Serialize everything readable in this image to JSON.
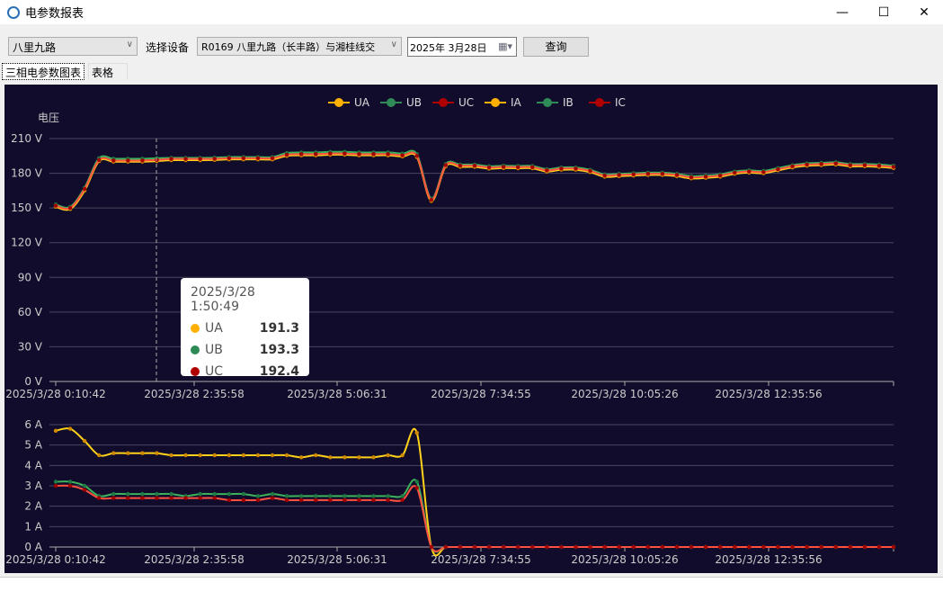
{
  "window": {
    "title": "电参数报表",
    "minimize": "—",
    "maximize": "☐",
    "close": "✕"
  },
  "toolbar": {
    "road_select": "八里九路",
    "device_label": "选择设备",
    "device_select": "R0169 八里九路（长丰路）与湘桂线交",
    "date": "2025年 3月28日",
    "query_button": "查询"
  },
  "tabs": [
    {
      "label": "三相电参数图表",
      "active": true
    },
    {
      "label": "表格",
      "active": false
    }
  ],
  "colors": {
    "background": "#110c2b",
    "A": "#ffb000",
    "B": "#2e8b57",
    "C": "#b00000"
  },
  "chart_data": [
    {
      "type": "line",
      "ylabel": "电压",
      "unit": "V",
      "ylim": [
        0,
        210
      ],
      "yticks": [
        "0 V",
        "30 V",
        "60 V",
        "90 V",
        "120 V",
        "150 V",
        "180 V",
        "210 V"
      ],
      "xticks": [
        "2025/3/28 0:10:42",
        "2025/3/28 2:35:58",
        "2025/3/28 5:06:31",
        "2025/3/28 7:34:55",
        "2025/3/28 10:05:26",
        "2025/3/28 12:35:56"
      ],
      "legend": [
        "UA",
        "UB",
        "UC",
        "IA",
        "IB",
        "IC"
      ],
      "legend_position": "top",
      "grid": true,
      "series": [
        {
          "name": "UA",
          "values": [
            151,
            149,
            165,
            190.5,
            190,
            190,
            190,
            190.5,
            191.3,
            191.3,
            191.3,
            191.5,
            192,
            192,
            192,
            192,
            195,
            195.5,
            195.5,
            196,
            196,
            195.5,
            195.5,
            195.5,
            194.5,
            194,
            156,
            186,
            185.5,
            185.5,
            184,
            184.5,
            184.3,
            184.3,
            181.5,
            183,
            183,
            181,
            177,
            177.5,
            178,
            178.5,
            178.5,
            177.5,
            175.5,
            176,
            177,
            179.5,
            180.5,
            180,
            182.5,
            185,
            186.5,
            187,
            187.5,
            186,
            186,
            185.5,
            184.5
          ]
        },
        {
          "name": "UB",
          "values": [
            153,
            151,
            167.5,
            193,
            192.5,
            192.5,
            192.5,
            193,
            193.3,
            193.3,
            193.3,
            193.5,
            194,
            194,
            194,
            194,
            197.5,
            198,
            198,
            198.5,
            198.5,
            198,
            198,
            198,
            197,
            196.5,
            158,
            188,
            187.5,
            187.5,
            186,
            186.5,
            186.3,
            186.3,
            183.5,
            185,
            185,
            183,
            179,
            179.5,
            180,
            180.5,
            180.5,
            179.5,
            177.5,
            178,
            179,
            181.5,
            182.5,
            182,
            184.5,
            187,
            188.5,
            189,
            189.5,
            188,
            188,
            187.5,
            186.5
          ]
        },
        {
          "name": "UC",
          "values": [
            152,
            150,
            166.5,
            191.5,
            191,
            191,
            191,
            191.5,
            192.4,
            192.4,
            192.4,
            192.5,
            193,
            193,
            193,
            193,
            196,
            196.5,
            196.5,
            197,
            197,
            196.5,
            196.5,
            196.5,
            195.5,
            195,
            157,
            187,
            186.5,
            186.5,
            185,
            185.5,
            185.3,
            185.3,
            182.5,
            184,
            184,
            182,
            178,
            178.5,
            179,
            179.5,
            179.5,
            178.5,
            176.5,
            177,
            178,
            180.5,
            181.5,
            181,
            183.5,
            186,
            187.5,
            188,
            188.5,
            187,
            187,
            186.5,
            185.5
          ]
        }
      ],
      "tooltip": {
        "time": "2025/3/28 1:50:49",
        "rows": [
          {
            "name": "UA",
            "value": "191.3"
          },
          {
            "name": "UB",
            "value": "193.3"
          },
          {
            "name": "UC",
            "value": "192.4"
          }
        ]
      }
    },
    {
      "type": "line",
      "unit": "A",
      "ylim": [
        0,
        6
      ],
      "yticks": [
        "0 A",
        "1 A",
        "2 A",
        "3 A",
        "4 A",
        "5 A",
        "6 A"
      ],
      "xticks": [
        "2025/3/28 0:10:42",
        "2025/3/28 2:35:58",
        "2025/3/28 5:06:31",
        "2025/3/28 7:34:55",
        "2025/3/28 10:05:26",
        "2025/3/28 12:35:56"
      ],
      "grid": true,
      "series": [
        {
          "name": "IA",
          "values": [
            5.7,
            5.8,
            5.2,
            4.5,
            4.6,
            4.6,
            4.6,
            4.6,
            4.5,
            4.5,
            4.5,
            4.5,
            4.5,
            4.5,
            4.5,
            4.5,
            4.5,
            4.4,
            4.5,
            4.4,
            4.4,
            4.4,
            4.4,
            4.5,
            4.5,
            5.6,
            0,
            0,
            0,
            0,
            0,
            0,
            0,
            0,
            0,
            0,
            0,
            0,
            0,
            0,
            0,
            0,
            0,
            0,
            0,
            0,
            0,
            0,
            0,
            0,
            0,
            0,
            0,
            0,
            0,
            0,
            0,
            0,
            0
          ]
        },
        {
          "name": "IB",
          "values": [
            3.2,
            3.2,
            3.0,
            2.5,
            2.6,
            2.6,
            2.6,
            2.6,
            2.6,
            2.5,
            2.6,
            2.6,
            2.6,
            2.6,
            2.5,
            2.6,
            2.5,
            2.5,
            2.5,
            2.5,
            2.5,
            2.5,
            2.5,
            2.5,
            2.5,
            3.2,
            0,
            0,
            0,
            0,
            0,
            0,
            0,
            0,
            0,
            0,
            0,
            0,
            0,
            0,
            0,
            0,
            0,
            0,
            0,
            0,
            0,
            0,
            0,
            0,
            0,
            0,
            0,
            0,
            0,
            0,
            0,
            0,
            0
          ]
        },
        {
          "name": "IC",
          "values": [
            3.0,
            3.0,
            2.8,
            2.4,
            2.4,
            2.4,
            2.4,
            2.4,
            2.4,
            2.4,
            2.4,
            2.4,
            2.3,
            2.3,
            2.3,
            2.4,
            2.3,
            2.3,
            2.3,
            2.3,
            2.3,
            2.3,
            2.3,
            2.3,
            2.3,
            2.9,
            0,
            0,
            0,
            0,
            0,
            0,
            0,
            0,
            0,
            0,
            0,
            0,
            0,
            0,
            0,
            0,
            0,
            0,
            0,
            0,
            0,
            0,
            0,
            0,
            0,
            0,
            0,
            0,
            0,
            0,
            0,
            0,
            0
          ]
        }
      ]
    }
  ]
}
